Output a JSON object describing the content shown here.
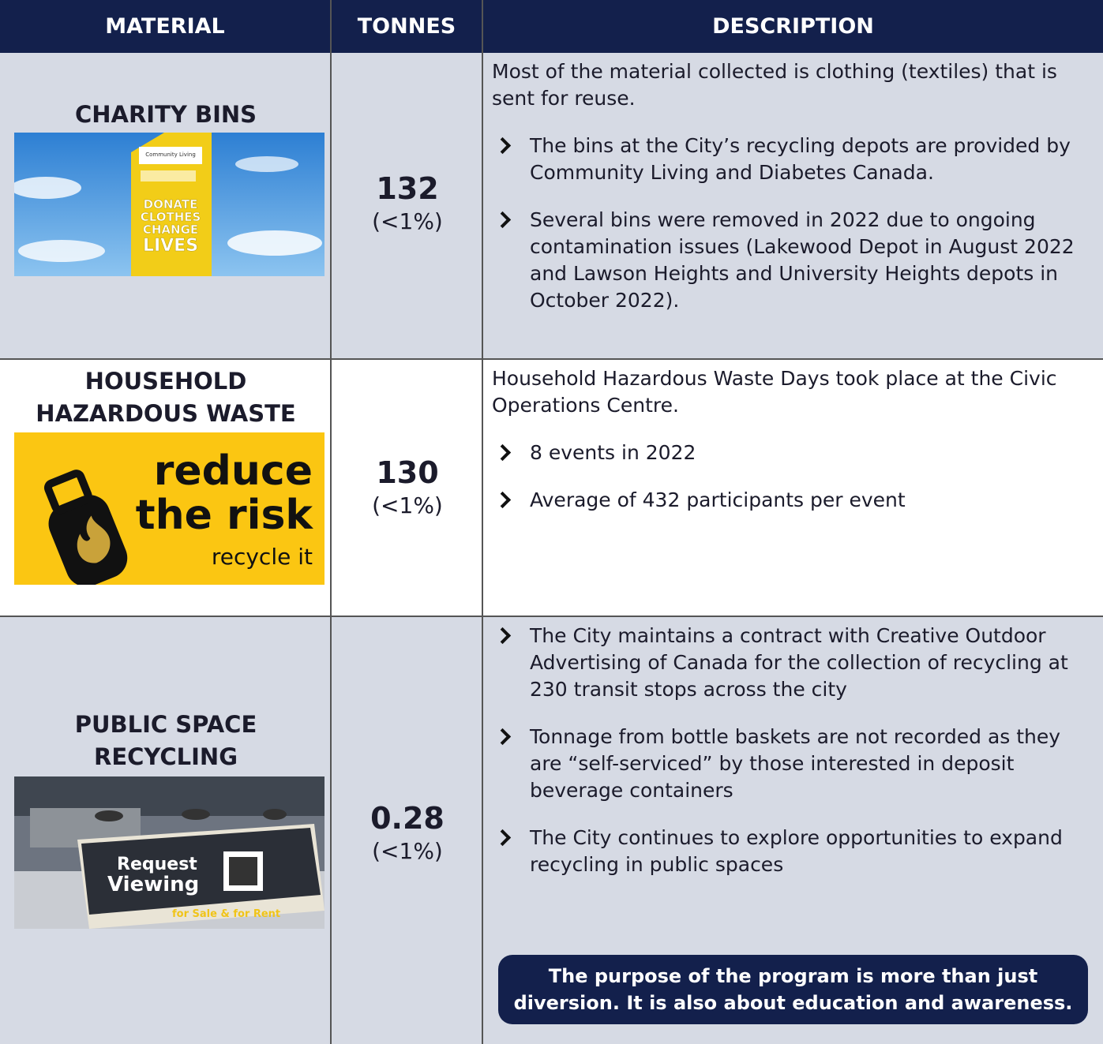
{
  "header": {
    "material": "MATERIAL",
    "tonnes": "TONNES",
    "description": "DESCRIPTION"
  },
  "rows": [
    {
      "material": "CHARITY BINS",
      "tonnes": "132",
      "share": "(<1%)",
      "image_text": {
        "brand": "Community Living",
        "slogan": [
          "DONATE",
          "CLOTHES",
          "CHANGE",
          "LIVES"
        ]
      },
      "intro": "Most of the material collected is clothing (textiles) that is sent for reuse.",
      "bullets": [
        "The bins at the City’s recycling depots are provided by Community Living and Diabetes Canada.",
        "Several bins were removed in 2022 due to ongoing contamination issues (Lakewood Depot in August 2022 and Lawson Heights and University Heights depots in October 2022)."
      ]
    },
    {
      "material": "HOUSEHOLD HAZARDOUS WASTE",
      "tonnes": "130",
      "share": "(<1%)",
      "image_text": {
        "headline": [
          "reduce",
          "the risk"
        ],
        "tagline": "recycle it"
      },
      "intro": "Household Hazardous Waste Days took place at the Civic Operations Centre.",
      "bullets": [
        "8 events in 2022",
        "Average of 432 participants per event"
      ]
    },
    {
      "material": "PUBLIC SPACE RECYCLING",
      "tonnes": "0.28",
      "share": "(<1%)",
      "image_text": {
        "sign": [
          "Request",
          "Viewing"
        ],
        "footer": "for Sale & for Rent"
      },
      "bullets": [
        "The City maintains a contract with Creative Outdoor Advertising of Canada for the collection of recycling at 230 transit stops across the city",
        "Tonnage from bottle baskets are not recorded as they are “self-serviced” by those interested in deposit beverage containers",
        "The City continues to explore opportunities to expand recycling in public spaces"
      ],
      "callout": "The purpose of the program is more than just diversion. It is also about education and awareness."
    }
  ]
}
